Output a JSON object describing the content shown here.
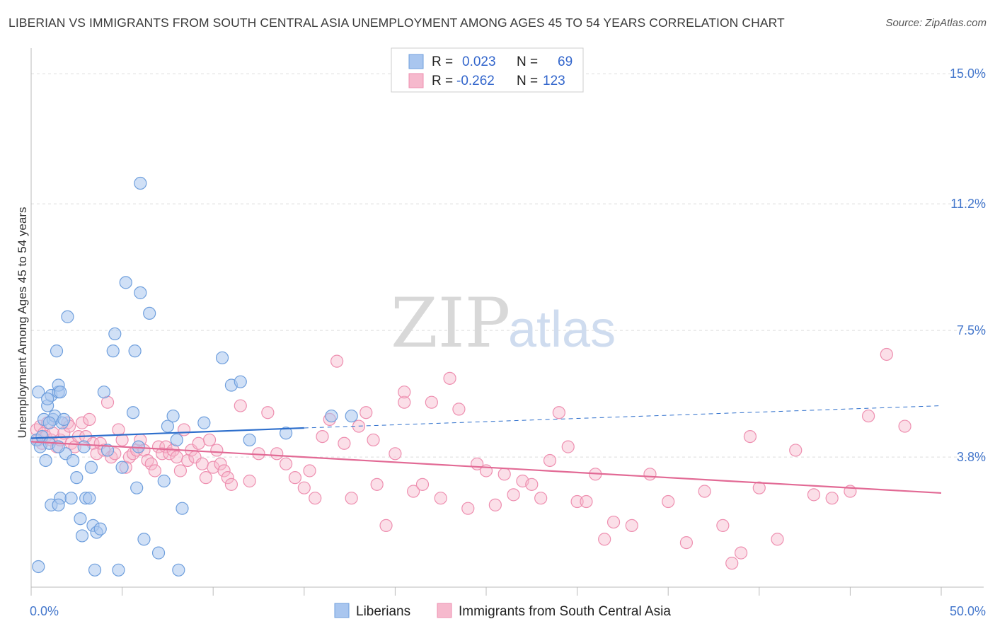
{
  "title": "LIBERIAN VS IMMIGRANTS FROM SOUTH CENTRAL ASIA UNEMPLOYMENT AMONG AGES 45 TO 54 YEARS CORRELATION CHART",
  "source": "Source: ZipAtlas.com",
  "watermark": {
    "zip": "ZIP",
    "atlas": "atlas"
  },
  "legend": {
    "rows": [
      {
        "r_label": "R =",
        "r_value": "0.023",
        "n_label": "N =",
        "n_value": "69"
      },
      {
        "r_label": "R =",
        "r_value": "-0.262",
        "n_label": "N =",
        "n_value": "123"
      }
    ]
  },
  "chart_data": {
    "type": "scatter",
    "title": "LIBERIAN VS IMMIGRANTS FROM SOUTH CENTRAL ASIA UNEMPLOYMENT AMONG AGES 45 TO 54 YEARS CORRELATION CHART",
    "xlabel": "",
    "ylabel": "Unemployment Among Ages 45 to 54 years",
    "xlim": [
      0,
      50
    ],
    "ylim": [
      0,
      15.5
    ],
    "x_tick_labels": [
      {
        "value": 0,
        "label": "0.0%"
      },
      {
        "value": 50,
        "label": "50.0%"
      }
    ],
    "y_ticks": [
      {
        "value": 3.8,
        "label": "3.8%"
      },
      {
        "value": 7.5,
        "label": "7.5%"
      },
      {
        "value": 11.2,
        "label": "11.2%"
      },
      {
        "value": 15.0,
        "label": "15.0%"
      }
    ],
    "x_minor_ticks": [
      0,
      5,
      10,
      15,
      20,
      25,
      30,
      35,
      40,
      45,
      50
    ],
    "grid": true,
    "colors": {
      "liberians_fill": "#a9c6ef",
      "liberians_stroke": "#6f9fdd",
      "liberians_line": "#2e6fcc",
      "immigrants_fill": "#f6b9cd",
      "immigrants_stroke": "#ee8fb0",
      "immigrants_line": "#e26a95",
      "tick_label": "#4477cc",
      "grid": "#dddddd"
    },
    "series": [
      {
        "name": "Liberians",
        "trend": {
          "x0": 0,
          "y0": 4.35,
          "x1": 15,
          "y1": 4.65,
          "dash_x1": 50,
          "dash_y1": 5.3
        },
        "points": [
          [
            0.3,
            4.3
          ],
          [
            0.4,
            5.7
          ],
          [
            0.5,
            4.1
          ],
          [
            0.6,
            4.4
          ],
          [
            0.7,
            4.9
          ],
          [
            0.8,
            3.7
          ],
          [
            0.9,
            5.3
          ],
          [
            1.0,
            4.2
          ],
          [
            1.1,
            5.6
          ],
          [
            1.2,
            4.9
          ],
          [
            1.3,
            5.0
          ],
          [
            1.5,
            5.7
          ],
          [
            1.5,
            5.9
          ],
          [
            1.7,
            4.8
          ],
          [
            1.8,
            4.9
          ],
          [
            1.9,
            3.9
          ],
          [
            1.4,
            6.9
          ],
          [
            1.5,
            4.1
          ],
          [
            1.6,
            5.7
          ],
          [
            0.9,
            5.5
          ],
          [
            1.0,
            4.8
          ],
          [
            1.1,
            2.4
          ],
          [
            1.6,
            2.6
          ],
          [
            1.5,
            2.4
          ],
          [
            2.0,
            7.9
          ],
          [
            2.2,
            2.6
          ],
          [
            2.3,
            3.7
          ],
          [
            2.5,
            3.2
          ],
          [
            2.7,
            2.0
          ],
          [
            2.8,
            1.5
          ],
          [
            2.9,
            4.1
          ],
          [
            3.0,
            2.6
          ],
          [
            3.2,
            2.6
          ],
          [
            3.3,
            3.5
          ],
          [
            3.4,
            1.8
          ],
          [
            3.5,
            0.5
          ],
          [
            3.6,
            1.6
          ],
          [
            3.8,
            1.7
          ],
          [
            4.0,
            5.7
          ],
          [
            4.2,
            4.0
          ],
          [
            4.5,
            6.9
          ],
          [
            4.6,
            7.4
          ],
          [
            4.8,
            0.5
          ],
          [
            5.0,
            3.5
          ],
          [
            5.2,
            8.9
          ],
          [
            5.6,
            5.1
          ],
          [
            5.7,
            6.9
          ],
          [
            5.8,
            2.9
          ],
          [
            5.9,
            4.1
          ],
          [
            6.0,
            8.6
          ],
          [
            6.2,
            1.4
          ],
          [
            6.5,
            8.0
          ],
          [
            7.0,
            1.0
          ],
          [
            7.3,
            3.1
          ],
          [
            7.5,
            4.7
          ],
          [
            8.0,
            4.3
          ],
          [
            7.8,
            5.0
          ],
          [
            8.1,
            0.5
          ],
          [
            8.3,
            2.3
          ],
          [
            9.5,
            4.8
          ],
          [
            10.5,
            6.7
          ],
          [
            11.0,
            5.9
          ],
          [
            11.5,
            6.0
          ],
          [
            12.0,
            4.3
          ],
          [
            14.0,
            4.5
          ],
          [
            16.5,
            5.0
          ],
          [
            17.6,
            5.0
          ],
          [
            0.4,
            0.6
          ],
          [
            6.0,
            11.8
          ]
        ]
      },
      {
        "name": "Immigrants from South Central Asia",
        "trend": {
          "x0": 0,
          "y0": 4.25,
          "x1": 50,
          "y1": 2.75
        },
        "points": [
          [
            0.3,
            4.6
          ],
          [
            0.4,
            4.3
          ],
          [
            0.5,
            4.7
          ],
          [
            0.6,
            4.2
          ],
          [
            0.7,
            4.5
          ],
          [
            0.8,
            4.4
          ],
          [
            0.9,
            4.8
          ],
          [
            1.1,
            4.3
          ],
          [
            1.2,
            4.5
          ],
          [
            1.4,
            4.1
          ],
          [
            1.6,
            4.3
          ],
          [
            1.8,
            4.5
          ],
          [
            2.0,
            4.8
          ],
          [
            2.2,
            4.2
          ],
          [
            2.4,
            4.1
          ],
          [
            2.6,
            4.4
          ],
          [
            2.8,
            4.8
          ],
          [
            3.0,
            4.4
          ],
          [
            3.2,
            4.9
          ],
          [
            3.4,
            4.2
          ],
          [
            3.6,
            3.9
          ],
          [
            3.8,
            4.2
          ],
          [
            4.0,
            4.0
          ],
          [
            4.2,
            5.4
          ],
          [
            4.4,
            3.8
          ],
          [
            4.6,
            3.9
          ],
          [
            4.8,
            4.6
          ],
          [
            5.0,
            4.3
          ],
          [
            5.2,
            3.5
          ],
          [
            5.4,
            3.8
          ],
          [
            5.6,
            3.9
          ],
          [
            5.8,
            4.0
          ],
          [
            6.0,
            4.3
          ],
          [
            6.2,
            4.0
          ],
          [
            6.4,
            3.7
          ],
          [
            6.6,
            3.6
          ],
          [
            6.8,
            3.4
          ],
          [
            7.0,
            4.1
          ],
          [
            7.2,
            3.9
          ],
          [
            7.4,
            4.1
          ],
          [
            7.6,
            3.9
          ],
          [
            7.8,
            4.0
          ],
          [
            8.0,
            3.8
          ],
          [
            8.2,
            3.4
          ],
          [
            8.4,
            4.6
          ],
          [
            8.6,
            3.7
          ],
          [
            8.8,
            4.0
          ],
          [
            9.0,
            3.8
          ],
          [
            9.2,
            4.2
          ],
          [
            9.4,
            3.6
          ],
          [
            9.6,
            3.2
          ],
          [
            9.8,
            4.3
          ],
          [
            10.0,
            3.5
          ],
          [
            10.2,
            4.0
          ],
          [
            10.4,
            3.6
          ],
          [
            10.6,
            3.4
          ],
          [
            10.8,
            3.2
          ],
          [
            11.0,
            3.0
          ],
          [
            11.5,
            5.3
          ],
          [
            12.0,
            3.1
          ],
          [
            12.5,
            3.9
          ],
          [
            13.0,
            5.1
          ],
          [
            13.5,
            3.9
          ],
          [
            14.0,
            3.6
          ],
          [
            14.5,
            3.2
          ],
          [
            15.0,
            2.9
          ],
          [
            15.3,
            3.4
          ],
          [
            15.6,
            2.6
          ],
          [
            16.0,
            4.4
          ],
          [
            16.4,
            4.9
          ],
          [
            16.8,
            6.6
          ],
          [
            17.2,
            4.2
          ],
          [
            17.6,
            2.6
          ],
          [
            18.0,
            4.7
          ],
          [
            18.4,
            5.1
          ],
          [
            18.8,
            4.3
          ],
          [
            19.0,
            3.0
          ],
          [
            19.5,
            1.8
          ],
          [
            20.0,
            3.9
          ],
          [
            20.5,
            5.4
          ],
          [
            21.0,
            2.8
          ],
          [
            21.5,
            3.0
          ],
          [
            22.0,
            5.4
          ],
          [
            22.5,
            2.6
          ],
          [
            23.0,
            6.1
          ],
          [
            23.5,
            5.2
          ],
          [
            24.0,
            2.3
          ],
          [
            24.5,
            3.6
          ],
          [
            25.0,
            3.4
          ],
          [
            25.5,
            2.4
          ],
          [
            26.0,
            3.3
          ],
          [
            26.5,
            2.7
          ],
          [
            27.0,
            3.1
          ],
          [
            27.5,
            3.0
          ],
          [
            28.0,
            2.6
          ],
          [
            28.5,
            3.7
          ],
          [
            29.0,
            5.1
          ],
          [
            29.5,
            4.1
          ],
          [
            30.0,
            2.5
          ],
          [
            30.5,
            2.5
          ],
          [
            31.0,
            3.3
          ],
          [
            31.5,
            1.4
          ],
          [
            32.0,
            1.9
          ],
          [
            33.0,
            1.8
          ],
          [
            34.0,
            3.3
          ],
          [
            35.0,
            2.5
          ],
          [
            36.0,
            1.3
          ],
          [
            37.0,
            2.8
          ],
          [
            38.0,
            1.8
          ],
          [
            39.0,
            1.0
          ],
          [
            39.5,
            4.4
          ],
          [
            40.0,
            2.9
          ],
          [
            41.0,
            1.4
          ],
          [
            42.0,
            4.0
          ],
          [
            43.0,
            2.7
          ],
          [
            44.0,
            2.6
          ],
          [
            45.0,
            2.8
          ],
          [
            46.0,
            5.0
          ],
          [
            47.0,
            6.8
          ],
          [
            48.0,
            4.7
          ],
          [
            20.5,
            5.7
          ],
          [
            2.1,
            4.7
          ],
          [
            38.5,
            0.7
          ]
        ]
      }
    ],
    "legend": [
      "Liberians",
      "Immigrants from South Central Asia"
    ]
  }
}
